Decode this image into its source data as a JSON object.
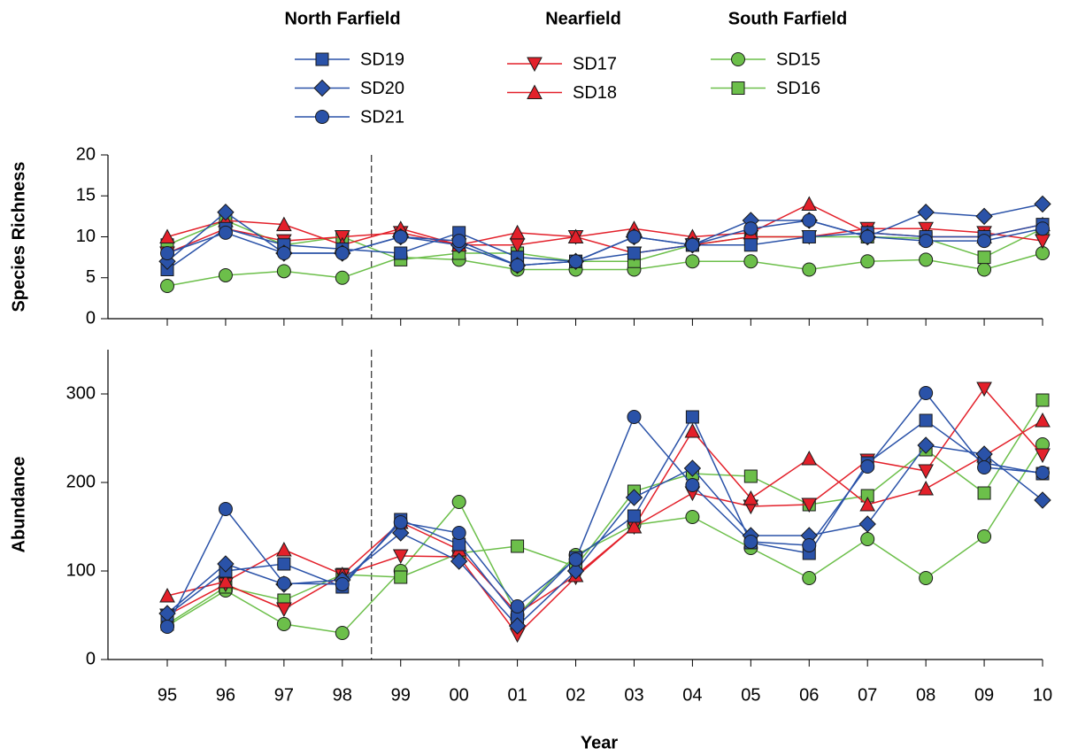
{
  "chart_data": {
    "type": "line",
    "xlabel": "Year",
    "categories": [
      "95",
      "96",
      "97",
      "98",
      "99",
      "00",
      "01",
      "02",
      "03",
      "04",
      "05",
      "06",
      "07",
      "08",
      "09",
      "10"
    ],
    "panels": [
      {
        "ylabel": "Species Richness",
        "ylim": [
          0,
          20
        ],
        "yticks": [
          0,
          5,
          10,
          15,
          20
        ]
      },
      {
        "ylabel": "Abundance",
        "ylim": [
          0,
          350
        ],
        "yticks": [
          0,
          100,
          200,
          300
        ]
      }
    ],
    "groups": [
      {
        "name": "North Farfield",
        "color": "#2a52a8",
        "series": [
          {
            "name": "SD19",
            "marker": "square",
            "values": [
              [
                6,
                11,
                9,
                8.5,
                8,
                10.5,
                7.5,
                7,
                8,
                9,
                9,
                10,
                10.5,
                10,
                10,
                11.5
              ],
              [
                50,
                100,
                108,
                82,
                158,
                130,
                48,
                115,
                162,
                274,
                132,
                120,
                222,
                270,
                222,
                210
              ]
            ]
          },
          {
            "name": "SD20",
            "marker": "diamond",
            "values": [
              [
                7,
                13,
                8,
                8,
                10,
                9,
                6.5,
                7,
                10,
                9,
                12,
                12,
                10,
                13,
                12.5,
                14
              ],
              [
                52,
                108,
                85,
                90,
                143,
                111,
                38,
                100,
                183,
                216,
                140,
                140,
                153,
                242,
                232,
                180
              ]
            ]
          },
          {
            "name": "SD21",
            "marker": "circle",
            "values": [
              [
                8,
                10.5,
                8,
                8,
                10,
                9.5,
                6.5,
                7,
                10,
                9,
                11,
                12,
                10,
                9.5,
                9.5,
                11
              ],
              [
                37,
                170,
                86,
                85,
                155,
                143,
                60,
                113,
                274,
                197,
                133,
                129,
                218,
                301,
                217,
                211
              ]
            ]
          }
        ]
      },
      {
        "name": "Nearfield",
        "color": "#e3202a",
        "series": [
          {
            "name": "SD17",
            "marker": "triangle-down",
            "values": [
              [
                8,
                11,
                9.5,
                10,
                10.5,
                9,
                9,
                10,
                8,
                9,
                10,
                10,
                11,
                11,
                10.5,
                9.5
              ],
              [
                50,
                85,
                57,
                95,
                117,
                116,
                28,
                93,
                150,
                188,
                173,
                175,
                225,
                213,
                306,
                231
              ]
            ]
          },
          {
            "name": "SD18",
            "marker": "triangle-up",
            "values": [
              [
                10,
                12,
                11.5,
                9,
                11,
                9,
                10.5,
                10,
                11,
                10,
                10.5,
                14,
                10.5,
                10,
                10,
                11.5
              ],
              [
                72,
                88,
                124,
                96,
                155,
                124,
                52,
                95,
                150,
                258,
                182,
                227,
                175,
                193,
                230,
                270
              ]
            ]
          }
        ]
      },
      {
        "name": "South Farfield",
        "color": "#6cbf4a",
        "series": [
          {
            "name": "SD15",
            "marker": "circle",
            "values": [
              [
                4,
                5.3,
                5.8,
                5,
                7.5,
                7.2,
                6,
                6,
                6,
                7,
                7,
                6,
                7,
                7.2,
                6,
                8
              ],
              [
                38,
                78,
                40,
                30,
                100,
                178,
                50,
                118,
                152,
                161,
                126,
                92,
                136,
                92,
                139,
                243
              ]
            ]
          },
          {
            "name": "SD16",
            "marker": "square",
            "values": [
              [
                9,
                12,
                9,
                10,
                7.2,
                8,
                8,
                7,
                7,
                9,
                10,
                10,
                10,
                9.8,
                7.5,
                11
              ],
              [
                40,
                82,
                67,
                96,
                93,
                120,
                128,
                105,
                190,
                210,
                207,
                175,
                185,
                237,
                188,
                293
              ]
            ]
          }
        ]
      }
    ]
  }
}
